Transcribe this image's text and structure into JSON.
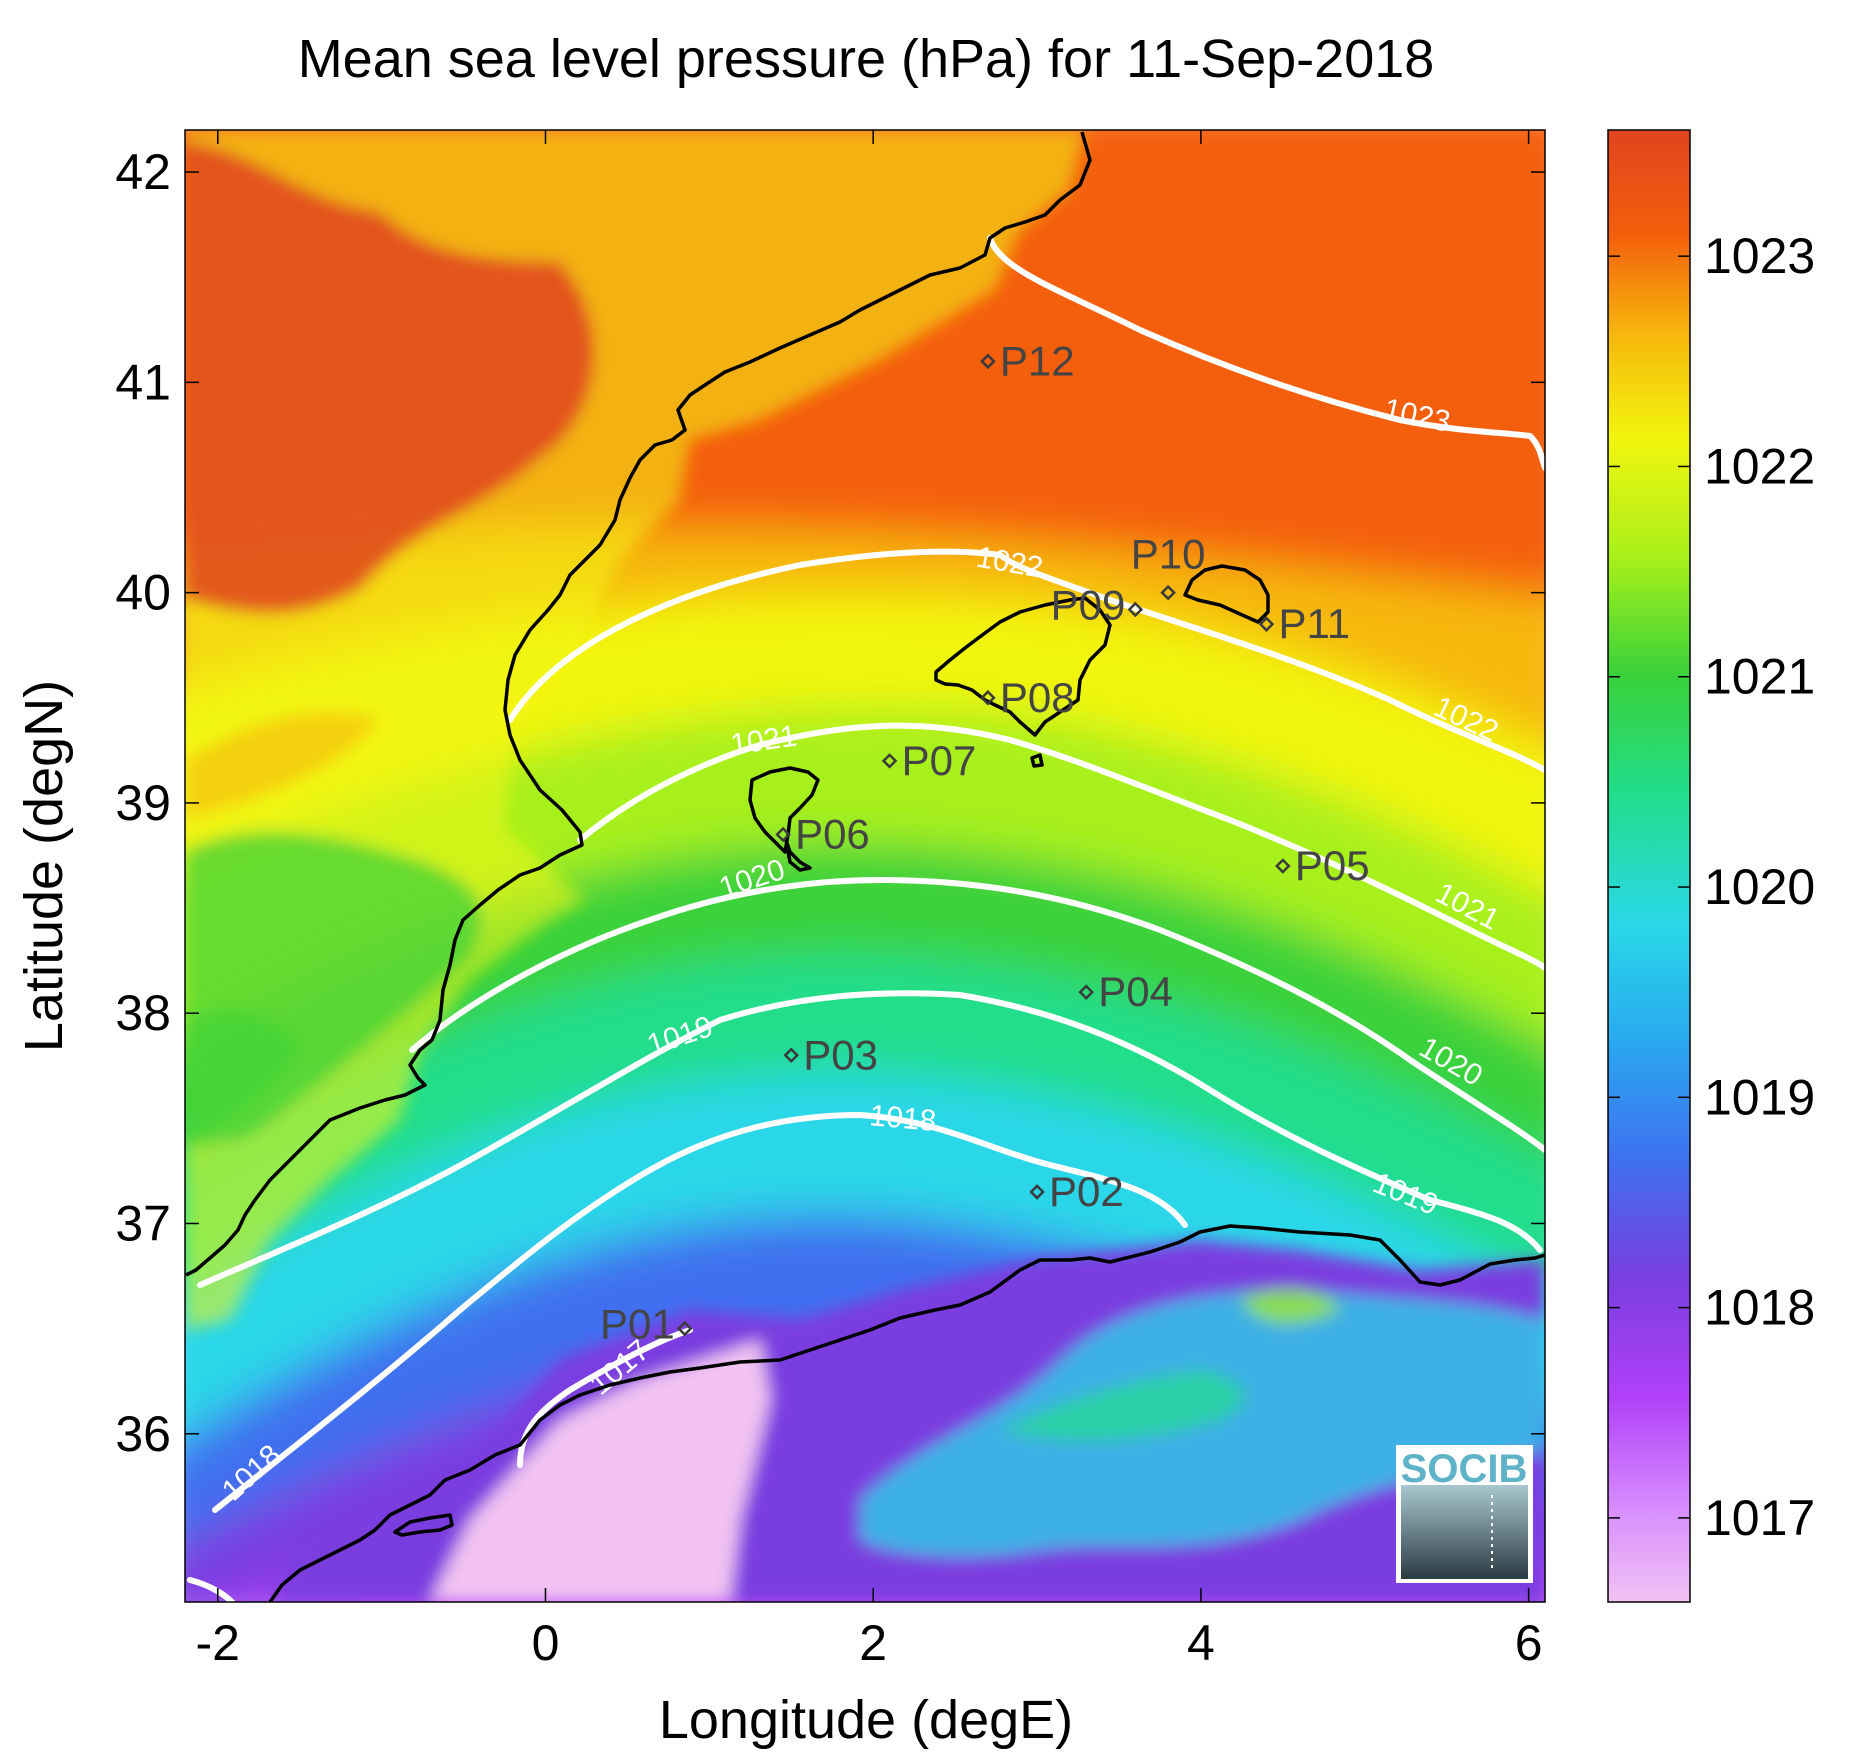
{
  "chart_data": {
    "type": "heatmap",
    "title": "Mean sea level pressure (hPa) for 11-Sep-2018",
    "xlabel": "Longitude (degE)",
    "ylabel": "Latitude (degN)",
    "xlim": [
      -2.2,
      6.1
    ],
    "ylim": [
      35.2,
      42.2
    ],
    "xticks": [
      {
        "value": -2,
        "label": "-2"
      },
      {
        "value": 0,
        "label": "0"
      },
      {
        "value": 2,
        "label": "2"
      },
      {
        "value": 4,
        "label": "4"
      },
      {
        "value": 6,
        "label": "6"
      }
    ],
    "yticks": [
      {
        "value": 36,
        "label": "36"
      },
      {
        "value": 37,
        "label": "37"
      },
      {
        "value": 38,
        "label": "38"
      },
      {
        "value": 39,
        "label": "39"
      },
      {
        "value": 40,
        "label": "40"
      },
      {
        "value": 41,
        "label": "41"
      },
      {
        "value": 42,
        "label": "42"
      }
    ],
    "colorbar": {
      "range": [
        1016.6,
        1023.6
      ],
      "ticks": [
        {
          "value": 1017,
          "label": "1017"
        },
        {
          "value": 1018,
          "label": "1018"
        },
        {
          "value": 1019,
          "label": "1019"
        },
        {
          "value": 1020,
          "label": "1020"
        },
        {
          "value": 1021,
          "label": "1021"
        },
        {
          "value": 1022,
          "label": "1022"
        },
        {
          "value": 1023,
          "label": "1023"
        }
      ],
      "colors": [
        "#f2c2f2",
        "#c040ff",
        "#7a3ee0",
        "#3f70f0",
        "#2ad7e8",
        "#22dd8a",
        "#3ad23a",
        "#a8f01a",
        "#f2f50e",
        "#f6b80c",
        "#f45e0c",
        "#e0441e"
      ]
    },
    "contour_labels": [
      "1017",
      "1018",
      "1018",
      "1019",
      "1019",
      "1020",
      "1020",
      "1021",
      "1021",
      "1022",
      "1022",
      "1023"
    ],
    "contour_levels": [
      1017,
      1018,
      1019,
      1020,
      1021,
      1022,
      1023
    ],
    "contour_color": "#ffffff",
    "coastline_color": "#000000",
    "stations": [
      {
        "name": "P01",
        "lon": 0.85,
        "lat": 36.5
      },
      {
        "name": "P02",
        "lon": 3.0,
        "lat": 37.15
      },
      {
        "name": "P03",
        "lon": 1.5,
        "lat": 37.8
      },
      {
        "name": "P04",
        "lon": 3.3,
        "lat": 38.1
      },
      {
        "name": "P05",
        "lon": 4.5,
        "lat": 38.7
      },
      {
        "name": "P06",
        "lon": 1.45,
        "lat": 38.85
      },
      {
        "name": "P07",
        "lon": 2.1,
        "lat": 39.2
      },
      {
        "name": "P08",
        "lon": 2.7,
        "lat": 39.5
      },
      {
        "name": "P09",
        "lon": 3.6,
        "lat": 39.92
      },
      {
        "name": "P10",
        "lon": 3.8,
        "lat": 40.0
      },
      {
        "name": "P11",
        "lon": 4.4,
        "lat": 39.85
      },
      {
        "name": "P12",
        "lon": 2.7,
        "lat": 41.1
      }
    ]
  },
  "logo": {
    "text": "SOCIB"
  }
}
